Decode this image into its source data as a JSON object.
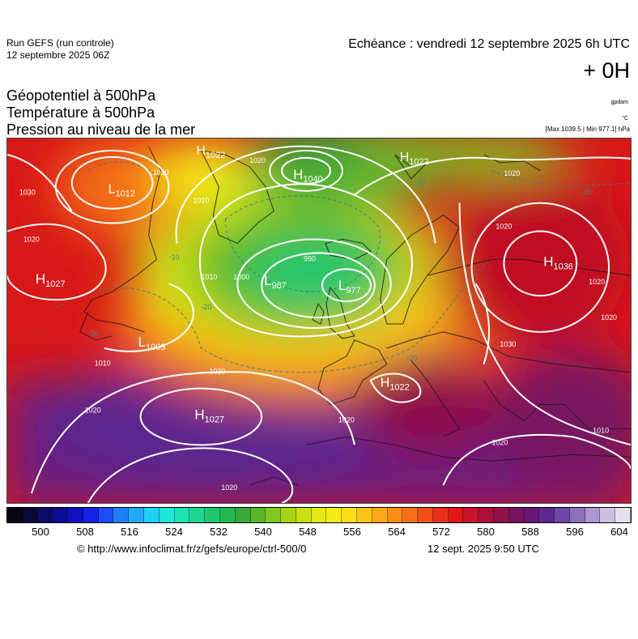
{
  "header": {
    "run_title": "Run GEFS (run controle)",
    "run_date": "12 septembre 2025 06Z",
    "echeance": "Echéance : vendredi 12 septembre 2025 6h UTC",
    "offset": "+ 0H"
  },
  "variables": {
    "line1": "Géopotentiel à 500hPa",
    "line2": "Température à 500hPa",
    "line3": "Pression au niveau de la mer",
    "unit_geopot": "gpdam",
    "unit_temp": "°C",
    "maxmin": "[Max 1039.5 | Min 977.1] hPa"
  },
  "pressure_centers": [
    {
      "type": "H",
      "value": "1027",
      "id": "west"
    },
    {
      "type": "L",
      "value": "1003",
      "id": "newfoundland"
    },
    {
      "type": "H",
      "value": "1027",
      "id": "azores"
    },
    {
      "type": "H",
      "value": "1022",
      "id": "iberia"
    },
    {
      "type": "L",
      "value": "987",
      "id": "iceland-sw"
    },
    {
      "type": "L",
      "value": "977",
      "id": "iceland-se"
    },
    {
      "type": "H",
      "value": "1040",
      "id": "greenland"
    },
    {
      "type": "H",
      "value": "1036",
      "id": "russia"
    },
    {
      "type": "H",
      "value": "1022",
      "id": "svalbard"
    },
    {
      "type": "H",
      "value": "1022",
      "id": "arctic"
    },
    {
      "type": "L",
      "value": "1012",
      "id": "canada"
    }
  ],
  "isobar_labels": [
    "1020",
    "1010",
    "1020",
    "1020",
    "1020",
    "1010",
    "1000",
    "990",
    "1020",
    "1020",
    "1020",
    "1030",
    "1020",
    "1010",
    "1010",
    "1020",
    "1020",
    "1010",
    "1030",
    "1020"
  ],
  "temperature_labels": [
    "-20",
    "-20",
    "-20",
    "-20",
    "-20",
    "-10"
  ],
  "colorbar": {
    "colors": [
      "#06060e",
      "#0a0a3a",
      "#0c0c66",
      "#0c0c92",
      "#1010c0",
      "#1820e8",
      "#1a4cf4",
      "#1e80f8",
      "#1eaaf8",
      "#1ed2f4",
      "#1ee6d8",
      "#1ee0b0",
      "#1ed690",
      "#1ec870",
      "#24b850",
      "#38a838",
      "#58b828",
      "#80c820",
      "#a8d418",
      "#c8e014",
      "#e4e814",
      "#f4ec18",
      "#fadc18",
      "#fac418",
      "#faa818",
      "#f88c18",
      "#f47018",
      "#f05018",
      "#e83018",
      "#e01818",
      "#c81428",
      "#ac1038",
      "#901048",
      "#781460",
      "#681878",
      "#5c2890",
      "#6c48a8",
      "#8c70bc",
      "#ac98d0",
      "#ccc0e0",
      "#e6e0ee"
    ],
    "ticks": [
      "500",
      "508",
      "516",
      "524",
      "532",
      "540",
      "548",
      "556",
      "564",
      "572",
      "580",
      "588",
      "596",
      "604"
    ]
  },
  "footer": {
    "credit": "© http://www.infoclimat.fr/z/gefs/europe/ctrl-500/0",
    "timestamp": "12 sept. 2025  9:50 UTC"
  }
}
